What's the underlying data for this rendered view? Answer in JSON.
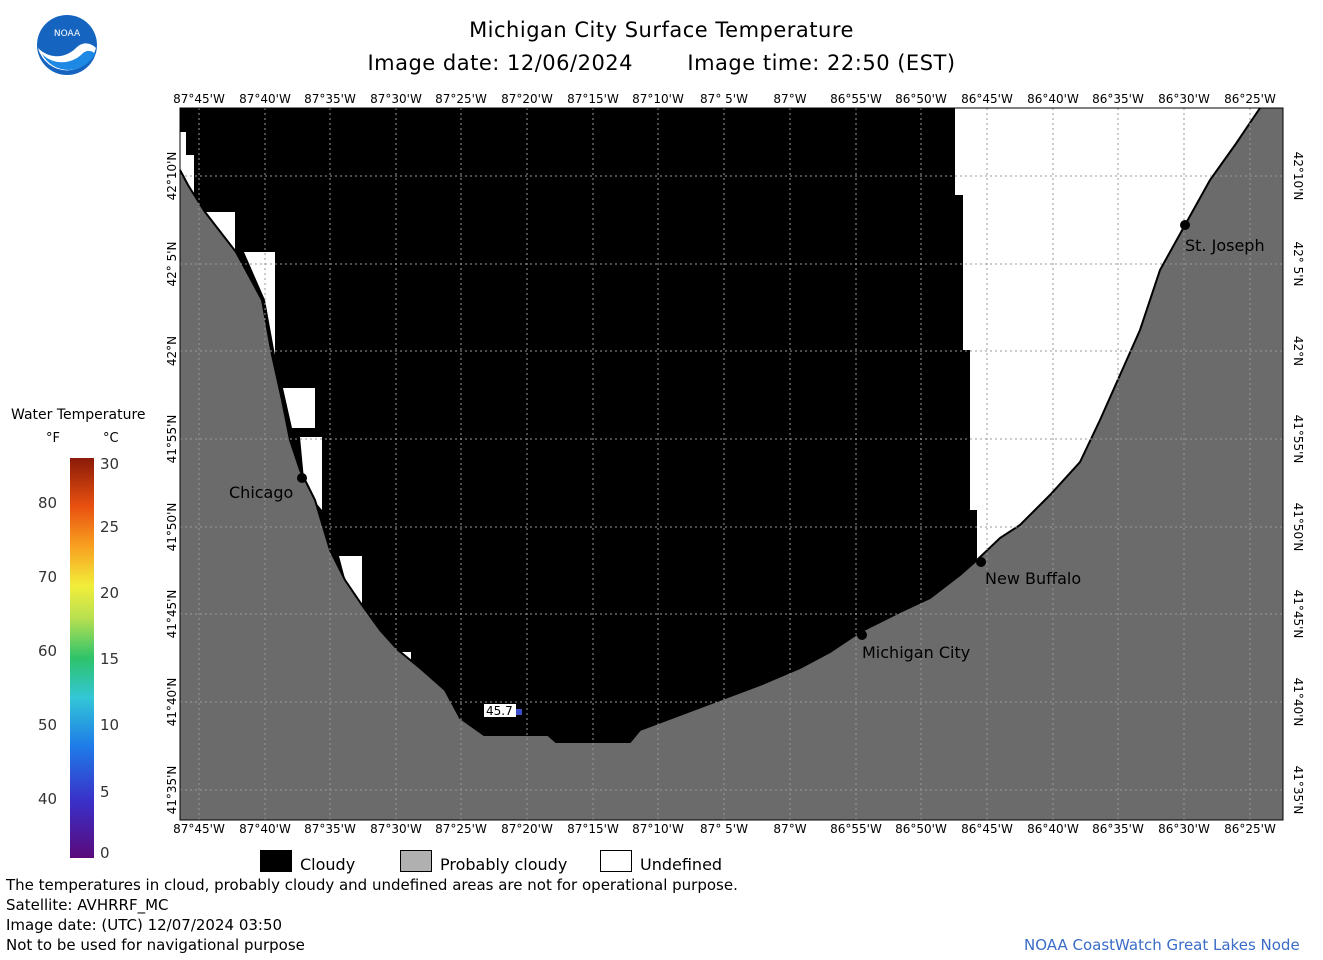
{
  "header": {
    "title": "Michigan City Surface Temperature",
    "image_date": "Image date: 12/06/2024",
    "image_time": "Image time: 22:50 (EST)"
  },
  "logo": {
    "text": "NOAA",
    "icon": "noaa-logo-icon"
  },
  "map": {
    "lon_ticks": [
      "87°45'W",
      "87°40'W",
      "87°35'W",
      "87°30'W",
      "87°25'W",
      "87°20'W",
      "87°15'W",
      "87°10'W",
      "87° 5'W",
      "87°W",
      "86°55'W",
      "86°50'W",
      "86°45'W",
      "86°40'W",
      "86°35'W",
      "86°30'W",
      "86°25'W"
    ],
    "lat_ticks": [
      "42°10'N",
      "42° 5'N",
      "42°N",
      "41°55'N",
      "41°50'N",
      "41°45'N",
      "41°40'N",
      "41°35'N"
    ],
    "cities": [
      {
        "name": "Chicago"
      },
      {
        "name": "St. Joseph"
      },
      {
        "name": "New Buffalo"
      },
      {
        "name": "Michigan City"
      }
    ],
    "temp_label": "45.7",
    "colors": {
      "cloudy": "#000000",
      "land": "#6b6b6b",
      "undefined": "#ffffff"
    }
  },
  "scale": {
    "title": "Water Temperature",
    "unit_f": "°F",
    "unit_c": "°C",
    "f_values": [
      "80",
      "70",
      "60",
      "50",
      "40"
    ],
    "c_values": [
      "30",
      "25",
      "20",
      "15",
      "10",
      "5",
      "0"
    ]
  },
  "legend": {
    "cloudy": "Cloudy",
    "probably_cloudy": "Probably cloudy",
    "undefined": "Undefined"
  },
  "footer": {
    "note": "The temperatures in cloud, probably cloudy and undefined areas are not for operational purpose.",
    "satellite": "Satellite: AVHRRF_MC",
    "utc_date": "Image date: (UTC) 12/07/2024  03:50",
    "nav_warning": "Not to be used for navigational purpose",
    "credit": "NOAA CoastWatch Great Lakes Node"
  }
}
